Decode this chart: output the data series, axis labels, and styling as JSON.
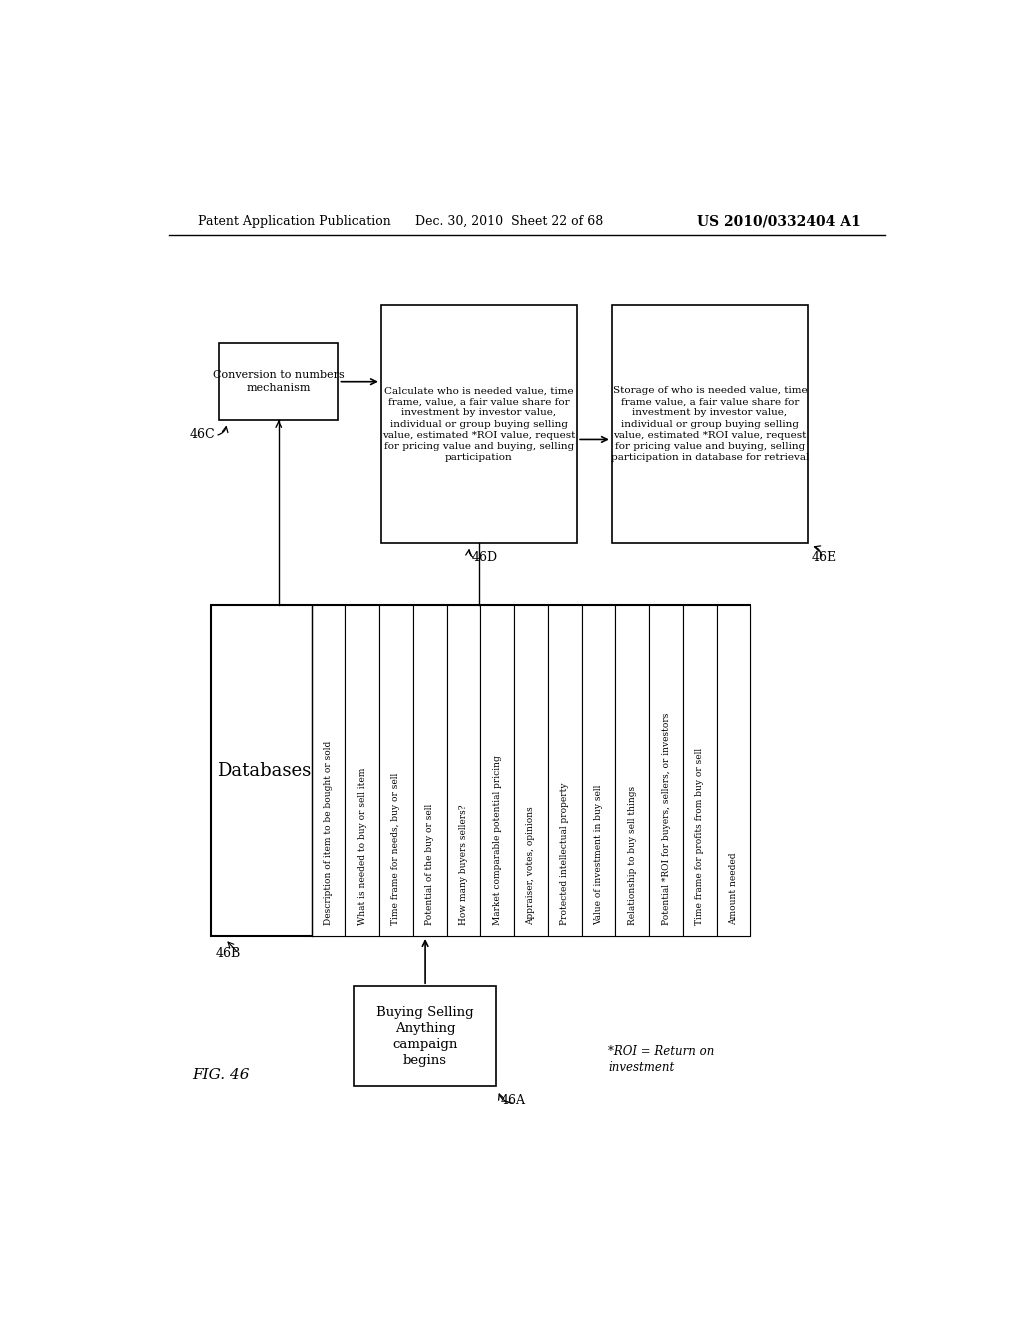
{
  "header_left": "Patent Application Publication",
  "header_mid": "Dec. 30, 2010  Sheet 22 of 68",
  "header_right": "US 2010/0332404 A1",
  "fig_label": "FIG. 46",
  "roi_note": "*ROI = Return on\ninvestment",
  "box_46A": "Buying Selling\nAnything\ncampaign\nbegins",
  "label_46A": "46A",
  "box_46C": "Conversion to numbers\nmechanism",
  "label_46C": "46C",
  "box_46D_title": "Calculate who is needed value, time\nframe, value, a fair value share for\ninvestment by investor value,\nindividual or group buying selling\nvalue, estimated *ROI value, request\nfor pricing value and buying, selling\nparticipation",
  "label_46D": "46D",
  "box_46E_title": "Storage of who is needed value, time\nframe value, a fair value share for\ninvestment by investor value,\nindividual or group buying selling\nvalue, estimated *ROI value, request\nfor pricing value and buying, selling\nparticipation in database for retrieval",
  "label_46E": "46E",
  "db_title": "Databases",
  "db_items": [
    "Description of item to be bought or sold",
    "What is needed to buy or sell item",
    "Time frame for needs, buy or sell",
    "Potential of the buy or sell",
    "How many buyers sellers?",
    "Market comparable potential pricing",
    "Appraiser, votes, opinions",
    "Protected intellectual property",
    "Value of investment in buy sell",
    "Relationship to buy sell things",
    "Potential *ROI for buyers, sellers, or investors",
    "Time frame for profits from buy or sell",
    "Amount needed"
  ],
  "bg_color": "#ffffff",
  "box_color": "#ffffff",
  "border_color": "#000000",
  "text_color": "#000000"
}
